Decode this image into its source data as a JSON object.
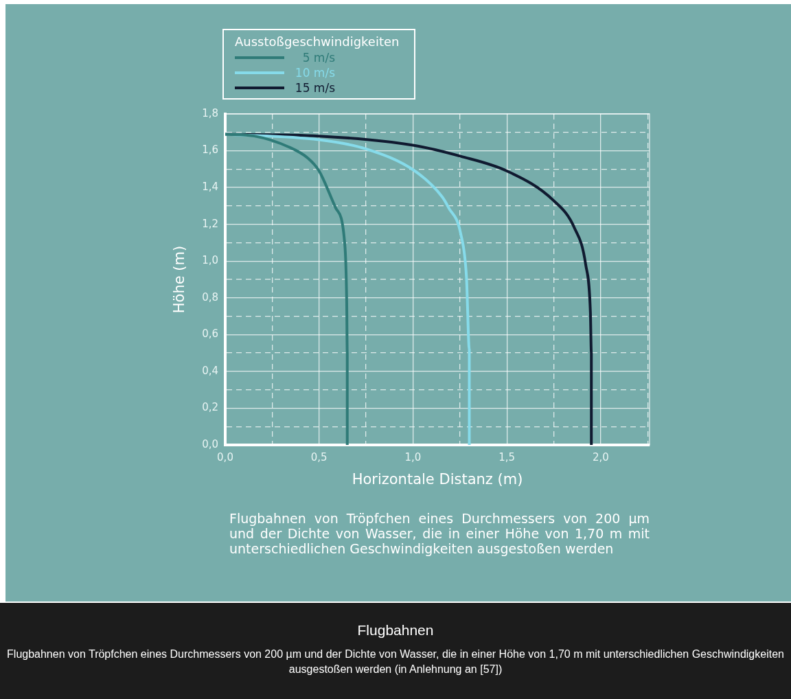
{
  "chart_data": {
    "type": "line",
    "title": "Flugbahnen",
    "xlabel": "Horizontale Distanz (m)",
    "ylabel": "Höhe (m)",
    "legend_title": "Ausstoßgeschwindigkeiten",
    "legend": "top left",
    "grid": true,
    "marker": "none",
    "line_style": "solid",
    "xlim": [
      0,
      2.26
    ],
    "ylim": [
      0,
      1.8
    ],
    "xticks": [
      {
        "value": 0,
        "label": "0,0"
      },
      {
        "value": 0.25,
        "label": null
      },
      {
        "value": 0.5,
        "label": "0,5"
      },
      {
        "value": 0.75,
        "label": null
      },
      {
        "value": 1,
        "label": "1,0"
      },
      {
        "value": 1.25,
        "label": null
      },
      {
        "value": 1.5,
        "label": "1,5"
      },
      {
        "value": 1.75,
        "label": null
      },
      {
        "value": 2,
        "label": "2,0"
      },
      {
        "value": 2.25,
        "label": null
      }
    ],
    "yticks": [
      {
        "value": 0,
        "label": "0,0"
      },
      {
        "value": 0.1,
        "label": null
      },
      {
        "value": 0.2,
        "label": "0,2"
      },
      {
        "value": 0.3,
        "label": null
      },
      {
        "value": 0.4,
        "label": "0,4"
      },
      {
        "value": 0.5,
        "label": null
      },
      {
        "value": 0.6,
        "label": "0,6"
      },
      {
        "value": 0.7,
        "label": null
      },
      {
        "value": 0.8,
        "label": "0,8"
      },
      {
        "value": 0.9,
        "label": null
      },
      {
        "value": 1,
        "label": "1,0"
      },
      {
        "value": 1.1,
        "label": null
      },
      {
        "value": 1.2,
        "label": "1,2"
      },
      {
        "value": 1.3,
        "label": null
      },
      {
        "value": 1.4,
        "label": "1,4"
      },
      {
        "value": 1.5,
        "label": null
      },
      {
        "value": 1.6,
        "label": "1,6"
      },
      {
        "value": 1.7,
        "label": null
      },
      {
        "value": 1.8,
        "label": "1,8"
      }
    ],
    "series": [
      {
        "name": "5 m/s",
        "color": "#2f7b78",
        "x": [
          0,
          0.155,
          0.34,
          0.44,
          0.5,
          0.588,
          0.637,
          0.647,
          0.65,
          0.65
        ],
        "values": [
          1.69,
          1.68,
          1.62,
          1.56,
          1.49,
          1.29,
          1.09,
          0.78,
          0.5,
          0
        ]
      },
      {
        "name": "10 m/s",
        "color": "#86dbea",
        "x": [
          0,
          0.5,
          0.75,
          1.01,
          1.155,
          1.19,
          1.254,
          1.285,
          1.3,
          1.3
        ],
        "values": [
          1.69,
          1.66,
          1.61,
          1.49,
          1.35,
          1.29,
          1.15,
          0.91,
          0.52,
          0
        ]
      },
      {
        "name": "15 m/s",
        "color": "#101a30",
        "x": [
          0,
          0.5,
          1.0,
          1.254,
          1.5,
          1.748,
          1.86,
          1.92,
          1.945,
          1.95,
          1.95
        ],
        "values": [
          1.69,
          1.68,
          1.63,
          1.57,
          1.49,
          1.33,
          1.18,
          0.98,
          0.72,
          0.5,
          0
        ]
      }
    ],
    "annotations": [
      "Flugbahnen von Tröpfchen eines Durchmessers von 200 µm und der Dichte von Wasser, die in einer Höhe von 1,70 m mit unterschiedlichen Geschwindigkeiten ausgestoßen werden",
      "Flugbahnen von Tröpfchen eines Durchmessers von 200 µm und der Dichte von Wasser, die in einer Höhe von 1,70 m mit unterschiedlichen Geschwindigkeiten ausgestoßen werden (in Anlehnung an [57])"
    ]
  }
}
